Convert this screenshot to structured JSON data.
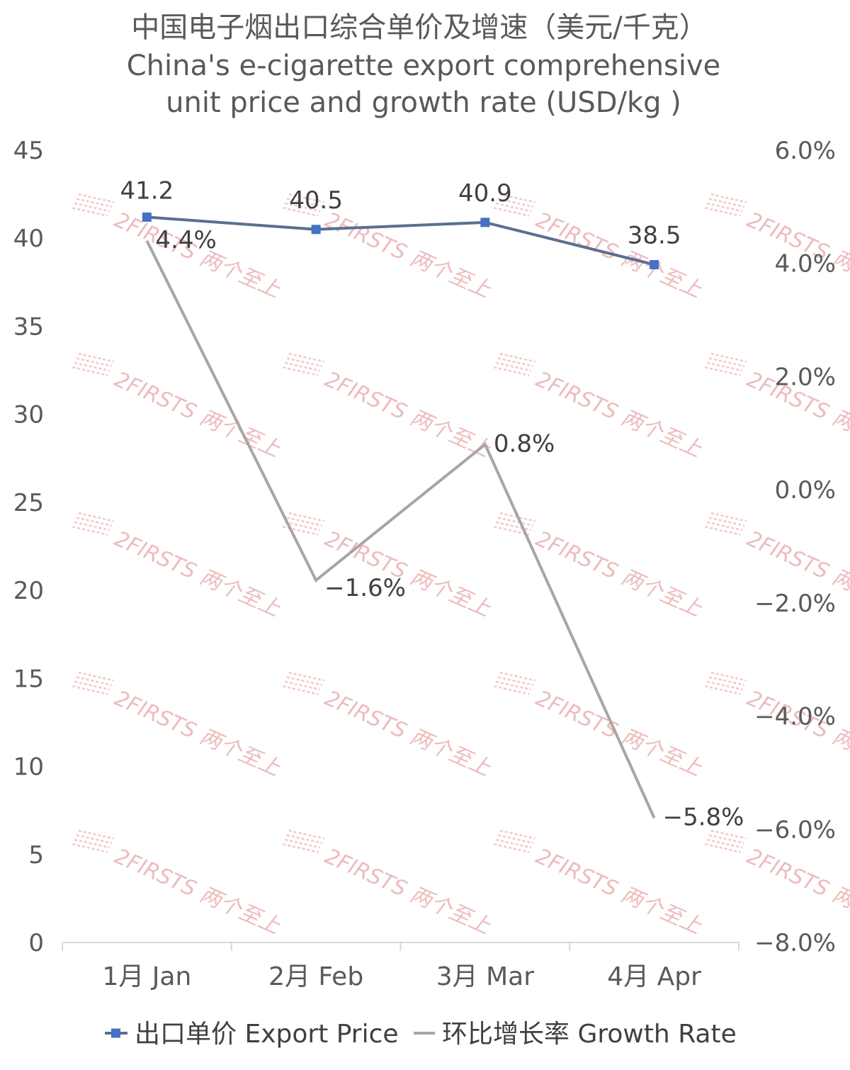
{
  "chart_data": {
    "type": "line",
    "title": [
      "中国电子烟出口综合单价及增速（美元/千克）",
      "China's e-cigarette export comprehensive",
      "unit price and growth rate (USD/kg )"
    ],
    "categories": [
      "1月 Jan",
      "2月 Feb",
      "3月 Mar",
      "4月 Apr"
    ],
    "y_left": {
      "ticks": [
        "0",
        "5",
        "10",
        "15",
        "20",
        "25",
        "30",
        "35",
        "40",
        "45"
      ],
      "range": [
        0,
        45
      ]
    },
    "y_right": {
      "ticks": [
        "-8.0%",
        "-6.0%",
        "-4.0%",
        "-2.0%",
        "0.0%",
        "2.0%",
        "4.0%",
        "6.0%"
      ],
      "range": [
        -0.08,
        0.06
      ]
    },
    "series": [
      {
        "name": "出口单价 Export Price",
        "axis": "left",
        "values": [
          41.2,
          40.5,
          40.9,
          38.5
        ],
        "labels": [
          "41.2",
          "40.5",
          "40.9",
          "38.5"
        ],
        "color": "#5b6f8f",
        "marker_color": "#4472c4"
      },
      {
        "name": "环比增长率 Growth Rate",
        "axis": "right",
        "values": [
          0.044,
          -0.016,
          0.008,
          -0.058
        ],
        "labels": [
          "4.4%",
          "-1.6%",
          "0.8%",
          "-5.8%"
        ],
        "color": "#a6a6a6"
      }
    ],
    "legend": "bottom",
    "grid": false,
    "watermark": "2FIRSTS 两个至上"
  }
}
